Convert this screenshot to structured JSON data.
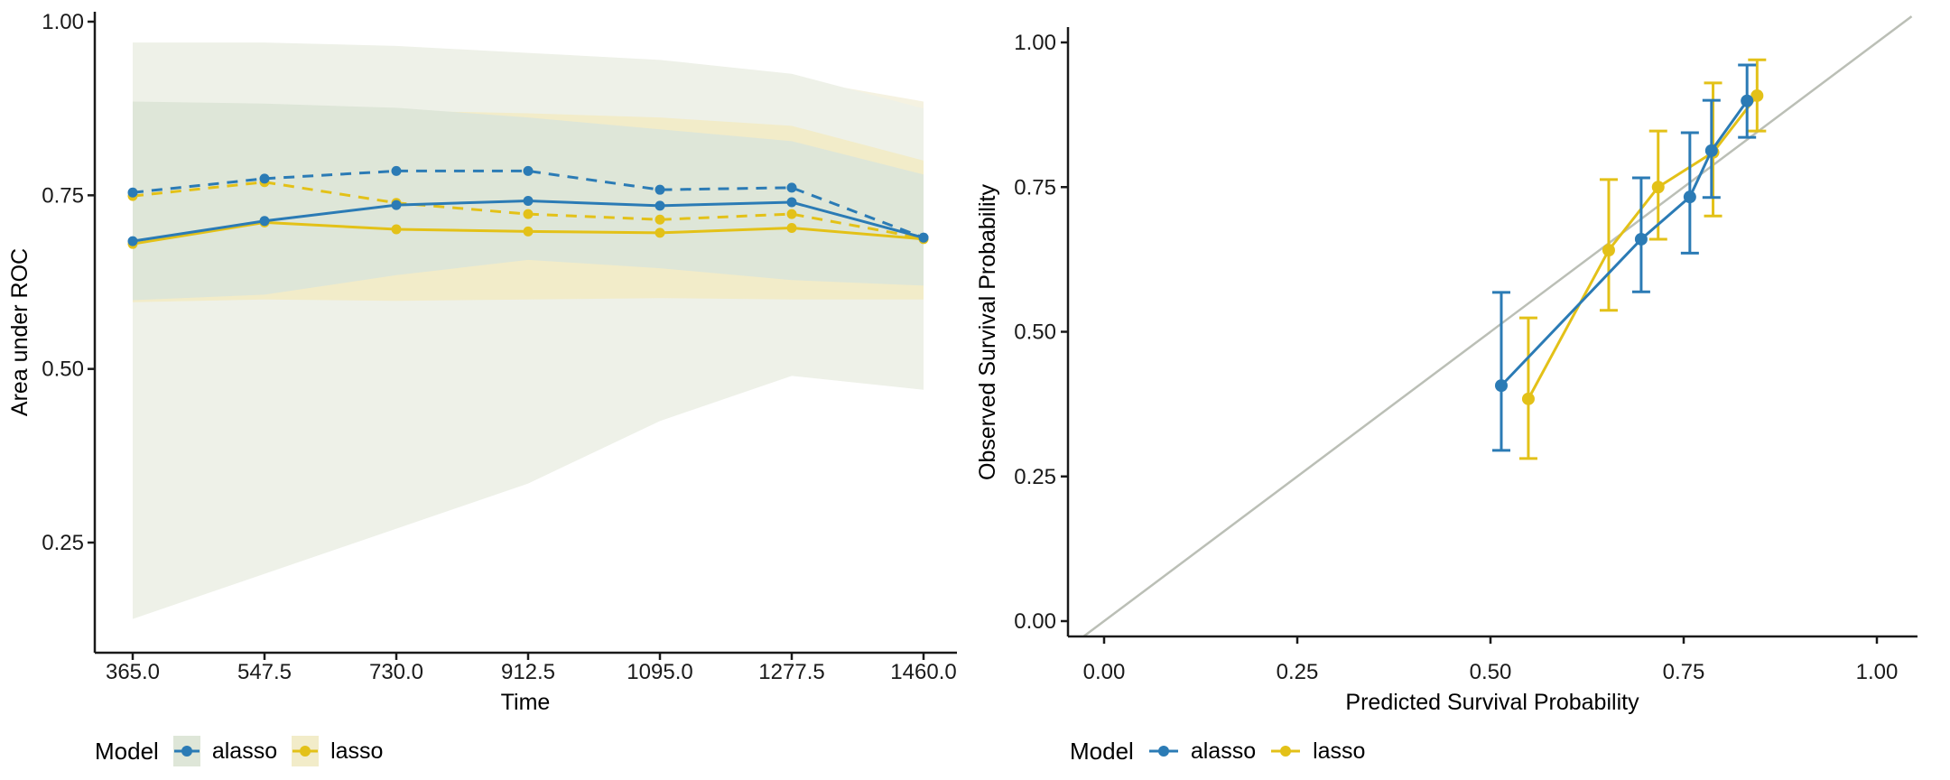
{
  "colors": {
    "alasso": "#2b7bb5",
    "lasso": "#e3c118",
    "identity_line": "#bbbfb6",
    "axis": "#1a1a1a",
    "alasso_ribbon_inner": "#dee6d8",
    "lasso_ribbon_inner": "#f2ecc9",
    "alasso_ribbon_outer": "#eef1e8",
    "lasso_ribbon_outer": "#f5f2e1"
  },
  "legends": {
    "left": {
      "title": "Model",
      "items": [
        {
          "label": "alasso",
          "model": "alasso"
        },
        {
          "label": "lasso",
          "model": "lasso"
        }
      ]
    },
    "right": {
      "title": "Model",
      "items": [
        {
          "label": "alasso",
          "model": "alasso"
        },
        {
          "label": "lasso",
          "model": "lasso"
        }
      ]
    }
  },
  "chart_data": [
    {
      "type": "line",
      "panel": "left",
      "title": "",
      "xlabel": "Time",
      "ylabel": "Area under ROC",
      "xlim": [
        310,
        1515
      ],
      "ylim": [
        0.09,
        1.015
      ],
      "grid": false,
      "legend_position": "bottom",
      "x": [
        365,
        547.5,
        730,
        912.5,
        1095,
        1277.5,
        1460
      ],
      "x_ticks": [
        365,
        547.5,
        730,
        912.5,
        1095,
        1277.5,
        1460
      ],
      "x_tick_labels": [
        "365.0",
        "547.5",
        "730.0",
        "912.5",
        "1095.0",
        "1277.5",
        "1460.0"
      ],
      "y_ticks": [
        0.25,
        0.5,
        0.75,
        1.0
      ],
      "y_tick_labels": [
        "0.25",
        "0.50",
        "0.75",
        "1.00"
      ],
      "series": [
        {
          "name": "lasso",
          "linetype": "dashed",
          "color": "#e3c118",
          "values": [
            0.749,
            0.769,
            0.739,
            0.723,
            0.715,
            0.723,
            0.688
          ]
        },
        {
          "name": "alasso",
          "linetype": "dashed",
          "color": "#2b7bb5",
          "values": [
            0.754,
            0.774,
            0.785,
            0.785,
            0.758,
            0.761,
            0.689
          ]
        },
        {
          "name": "lasso",
          "linetype": "solid",
          "color": "#e3c118",
          "values": [
            0.68,
            0.711,
            0.701,
            0.698,
            0.696,
            0.703,
            0.687
          ]
        },
        {
          "name": "alasso",
          "linetype": "solid",
          "color": "#2b7bb5",
          "values": [
            0.684,
            0.713,
            0.736,
            0.742,
            0.735,
            0.74,
            0.689
          ]
        }
      ],
      "ribbons": [
        {
          "name": "lasso-wide",
          "fill": "#f5f2e1",
          "upper": [
            0.965,
            0.965,
            0.958,
            0.948,
            0.938,
            0.918,
            0.885
          ],
          "lower": [
            0.155,
            0.215,
            0.285,
            0.36,
            0.44,
            0.5,
            0.48
          ]
        },
        {
          "name": "alasso-wide",
          "fill": "#eef1e8",
          "upper": [
            0.97,
            0.97,
            0.965,
            0.955,
            0.945,
            0.925,
            0.875
          ],
          "lower": [
            0.14,
            0.205,
            0.27,
            0.335,
            0.425,
            0.49,
            0.47
          ]
        },
        {
          "name": "lasso-inner",
          "fill": "#f2ecc9",
          "upper": [
            0.87,
            0.874,
            0.872,
            0.868,
            0.862,
            0.85,
            0.8
          ],
          "lower": [
            0.596,
            0.6,
            0.598,
            0.6,
            0.602,
            0.6,
            0.6
          ]
        },
        {
          "name": "alasso-inner",
          "fill": "#dee6d8",
          "upper": [
            0.885,
            0.882,
            0.876,
            0.862,
            0.845,
            0.828,
            0.78
          ],
          "lower": [
            0.599,
            0.607,
            0.635,
            0.657,
            0.645,
            0.628,
            0.62
          ]
        }
      ]
    },
    {
      "type": "scatter",
      "panel": "right",
      "title": "",
      "xlabel": "Predicted Survival Probability",
      "ylabel": "Observed Survival Probability",
      "xlim": [
        -0.047,
        1.053
      ],
      "ylim": [
        -0.027,
        1.027
      ],
      "grid": false,
      "legend_position": "bottom",
      "identity_line": true,
      "x_ticks": [
        0.0,
        0.25,
        0.5,
        0.75,
        1.0
      ],
      "x_tick_labels": [
        "0.00",
        "0.25",
        "0.50",
        "0.75",
        "1.00"
      ],
      "y_ticks": [
        0.0,
        0.25,
        0.5,
        0.75,
        1.0
      ],
      "y_tick_labels": [
        "0.00",
        "0.25",
        "0.50",
        "0.75",
        "1.00"
      ],
      "series": [
        {
          "name": "lasso",
          "color": "#e3c118",
          "x": [
            0.549,
            0.653,
            0.717,
            0.788,
            0.845
          ],
          "y": [
            0.384,
            0.641,
            0.75,
            0.81,
            0.908
          ],
          "ymin": [
            0.281,
            0.537,
            0.66,
            0.7,
            0.847
          ],
          "ymax": [
            0.524,
            0.763,
            0.847,
            0.93,
            0.97
          ]
        },
        {
          "name": "alasso",
          "color": "#2b7bb5",
          "x": [
            0.514,
            0.695,
            0.758,
            0.786,
            0.832
          ],
          "y": [
            0.407,
            0.66,
            0.733,
            0.813,
            0.899
          ],
          "ymin": [
            0.295,
            0.569,
            0.636,
            0.732,
            0.836
          ],
          "ymax": [
            0.568,
            0.766,
            0.844,
            0.9,
            0.961
          ]
        }
      ]
    }
  ]
}
